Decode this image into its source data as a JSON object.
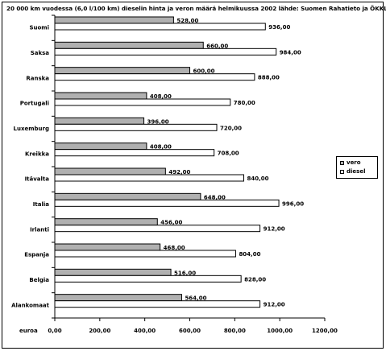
{
  "chart_data": {
    "type": "bar",
    "orientation": "horizontal",
    "title": "20 000 km vuodessa (6,0 l/100 km) dieselin hinta ja veron määrä helmikuussa 2002 lähde: Suomen Rahatieto ja ÖKKL",
    "xlabel": "euroa",
    "ylabel": "",
    "xlim": [
      0,
      1200
    ],
    "xticks": [
      "0,00",
      "200,00",
      "400,00",
      "600,00",
      "800,00",
      "1000,00",
      "1200,00"
    ],
    "grid": false,
    "legend_position": "right",
    "categories": [
      "Suomi",
      "Saksa",
      "Ranska",
      "Portugali",
      "Luxemburg",
      "Kreikka",
      "Itävalta",
      "Italia",
      "Irlanti",
      "Espanja",
      "Belgia",
      "Alankomaat"
    ],
    "series": [
      {
        "name": "vero",
        "color": "#b0b0b0",
        "values": [
          528,
          660,
          600,
          408,
          396,
          408,
          492,
          648,
          456,
          468,
          516,
          564
        ],
        "labels": [
          "528,00",
          "660,00",
          "600,00",
          "408,00",
          "396,00",
          "408,00",
          "492,00",
          "648,00",
          "456,00",
          "468,00",
          "516,00",
          "564,00"
        ]
      },
      {
        "name": "diesel",
        "color": "#ffffff",
        "values": [
          936,
          984,
          888,
          780,
          720,
          708,
          840,
          996,
          912,
          804,
          828,
          912
        ],
        "labels": [
          "936,00",
          "984,00",
          "888,00",
          "780,00",
          "720,00",
          "708,00",
          "840,00",
          "996,00",
          "912,00",
          "804,00",
          "828,00",
          "912,00"
        ]
      }
    ]
  }
}
